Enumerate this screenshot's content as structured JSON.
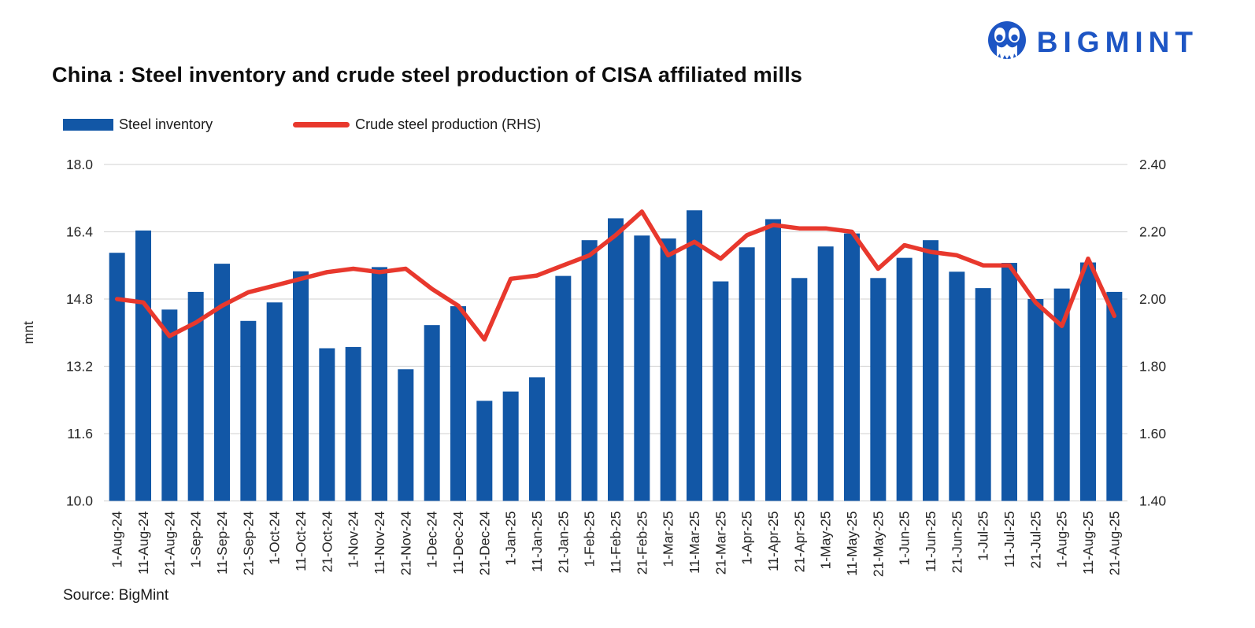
{
  "logo": {
    "text": "BIGMINT"
  },
  "title": "China : Steel inventory and crude steel production of CISA affiliated mills",
  "legend": [
    {
      "label": "Steel inventory",
      "type": "bar"
    },
    {
      "label": "Crude steel production (RHS)",
      "type": "line"
    }
  ],
  "source": "Source: BigMint",
  "colors": {
    "bar": "#1257a6",
    "line": "#e8382d",
    "grid": "#d9d9d9",
    "axis_text": "#262626",
    "logo_blue": "#1d55c4"
  },
  "chart_data": {
    "type": "bar",
    "subtype": "bar+line combo, dual axis",
    "title": "China : Steel inventory and crude steel production of CISA affiliated mills",
    "xlabel": "",
    "ylabel_left": "mnt",
    "ylabel_right": "",
    "grid": true,
    "legend_position": "top-left",
    "left_axis": {
      "min": 10.0,
      "max": 18.0,
      "ticks": [
        "18.0",
        "16.4",
        "14.8",
        "13.2",
        "11.6",
        "10.0"
      ]
    },
    "right_axis": {
      "min": 1.4,
      "max": 2.4,
      "ticks": [
        "2.40",
        "2.20",
        "2.00",
        "1.80",
        "1.60",
        "1.40"
      ]
    },
    "categories": [
      "1-Aug-24",
      "11-Aug-24",
      "21-Aug-24",
      "1-Sep-24",
      "11-Sep-24",
      "21-Sep-24",
      "1-Oct-24",
      "11-Oct-24",
      "21-Oct-24",
      "1-Nov-24",
      "11-Nov-24",
      "21-Nov-24",
      "1-Dec-24",
      "11-Dec-24",
      "21-Dec-24",
      "1-Jan-25",
      "11-Jan-25",
      "21-Jan-25",
      "1-Feb-25",
      "11-Feb-25",
      "21-Feb-25",
      "1-Mar-25",
      "11-Mar-25",
      "21-Mar-25",
      "1-Apr-25",
      "11-Apr-25",
      "21-Apr-25",
      "1-May-25",
      "11-May-25",
      "21-May-25",
      "1-Jun-25",
      "11-Jun-25",
      "21-Jun-25",
      "1-Jul-25",
      "11-Jul-25",
      "21-Jul-25",
      "1-Aug-25",
      "11-Aug-25",
      "21-Aug-25"
    ],
    "series": [
      {
        "name": "Steel inventory",
        "type": "bar",
        "axis": "left",
        "unit": "mnt",
        "color": "#1257a6",
        "values": [
          15.9,
          16.43,
          14.55,
          14.97,
          15.64,
          14.28,
          14.72,
          15.46,
          13.63,
          13.66,
          15.56,
          13.13,
          14.18,
          14.63,
          12.38,
          12.6,
          12.94,
          15.35,
          16.2,
          16.72,
          16.31,
          16.24,
          16.91,
          15.22,
          16.03,
          16.7,
          15.3,
          16.05,
          16.36,
          15.3,
          15.78,
          16.2,
          15.45,
          15.06,
          15.66,
          14.8,
          15.05,
          15.67,
          14.97
        ]
      },
      {
        "name": "Crude steel production (RHS)",
        "type": "line",
        "axis": "right",
        "color": "#e8382d",
        "values": [
          2.0,
          1.99,
          1.89,
          1.93,
          1.98,
          2.02,
          2.04,
          2.06,
          2.08,
          2.09,
          2.08,
          2.09,
          2.03,
          1.98,
          1.88,
          2.06,
          2.07,
          2.1,
          2.13,
          2.19,
          2.26,
          2.13,
          2.17,
          2.12,
          2.19,
          2.22,
          2.21,
          2.21,
          2.2,
          2.09,
          2.16,
          2.14,
          2.13,
          2.1,
          2.1,
          1.99,
          1.92,
          2.12,
          1.95
        ]
      }
    ]
  }
}
